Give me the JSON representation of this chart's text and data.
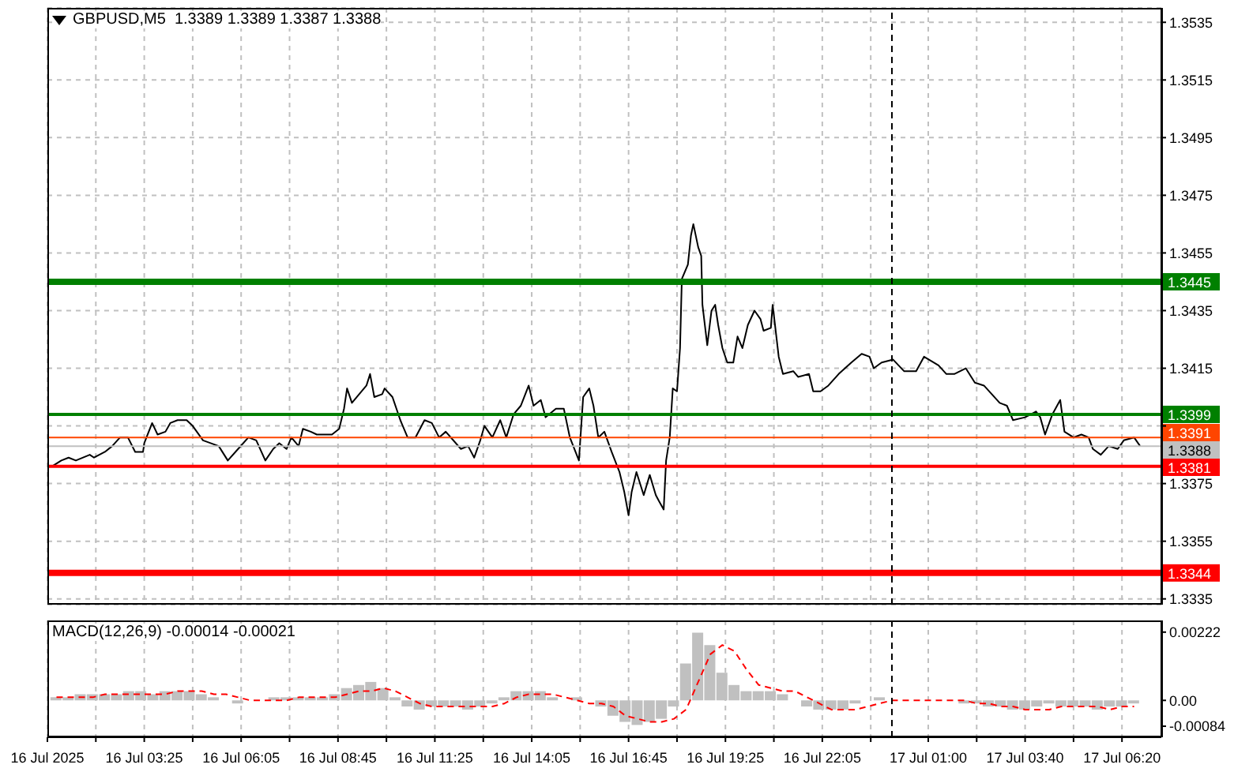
{
  "chart_data": [
    {
      "type": "line",
      "title": "GBPUSD,M5  1.3389 1.3389 1.3387 1.3388",
      "x": [
        "2025-07-16T00:53",
        "2025-07-16T01:08",
        "2025-07-16T01:20",
        "2025-07-16T01:32",
        "2025-07-16T01:55",
        "2025-07-16T02:02",
        "2025-07-16T02:20",
        "2025-07-16T02:32",
        "2025-07-16T02:45",
        "2025-07-16T02:58",
        "2025-07-16T03:10",
        "2025-07-16T03:23",
        "2025-07-16T03:25",
        "2025-07-16T03:38",
        "2025-07-16T03:47",
        "2025-07-16T04:00",
        "2025-07-16T04:08",
        "2025-07-16T04:20",
        "2025-07-16T04:35",
        "2025-07-16T04:45",
        "2025-07-16T05:02",
        "2025-07-16T05:28",
        "2025-07-16T05:43",
        "2025-07-16T06:00",
        "2025-07-16T06:17",
        "2025-07-16T06:30",
        "2025-07-16T06:45",
        "2025-07-16T06:58",
        "2025-07-16T07:08",
        "2025-07-16T07:20",
        "2025-07-16T07:28",
        "2025-07-16T07:40",
        "2025-07-16T07:47",
        "2025-07-16T08:00",
        "2025-07-16T08:10",
        "2025-07-16T08:23",
        "2025-07-16T08:35",
        "2025-07-16T08:47",
        "2025-07-16T08:55",
        "2025-07-16T09:00",
        "2025-07-16T09:08",
        "2025-07-16T09:20",
        "2025-07-16T09:32",
        "2025-07-16T09:38",
        "2025-07-16T09:45",
        "2025-07-16T09:58",
        "2025-07-16T10:02",
        "2025-07-16T10:15",
        "2025-07-16T10:28",
        "2025-07-16T10:40",
        "2025-07-16T10:53",
        "2025-07-16T11:08",
        "2025-07-16T11:20",
        "2025-07-16T11:32",
        "2025-07-16T11:43",
        "2025-07-16T12:08",
        "2025-07-16T12:20",
        "2025-07-16T12:30",
        "2025-07-16T12:40",
        "2025-07-16T12:47",
        "2025-07-16T13:00",
        "2025-07-16T13:13",
        "2025-07-16T13:23",
        "2025-07-16T13:35",
        "2025-07-16T13:47",
        "2025-07-16T14:00",
        "2025-07-16T14:08",
        "2025-07-16T14:20",
        "2025-07-16T14:28",
        "2025-07-16T14:45",
        "2025-07-16T14:58",
        "2025-07-16T15:08",
        "2025-07-16T15:23",
        "2025-07-16T15:30",
        "2025-07-16T15:40",
        "2025-07-16T15:47",
        "2025-07-16T15:55",
        "2025-07-16T16:05",
        "2025-07-16T16:17",
        "2025-07-16T16:30",
        "2025-07-16T16:38",
        "2025-07-16T16:45",
        "2025-07-16T16:50",
        "2025-07-16T16:58",
        "2025-07-16T17:10",
        "2025-07-16T17:20",
        "2025-07-16T17:30",
        "2025-07-16T17:35",
        "2025-07-16T17:43",
        "2025-07-16T17:47",
        "2025-07-16T17:53",
        "2025-07-16T17:58",
        "2025-07-16T18:05",
        "2025-07-16T18:10",
        "2025-07-16T18:13",
        "2025-07-16T18:23",
        "2025-07-16T18:28",
        "2025-07-16T18:32",
        "2025-07-16T18:40",
        "2025-07-16T18:45",
        "2025-07-16T18:47",
        "2025-07-16T18:55",
        "2025-07-16T19:02",
        "2025-07-16T19:08",
        "2025-07-16T19:13",
        "2025-07-16T19:20",
        "2025-07-16T19:28",
        "2025-07-16T19:38",
        "2025-07-16T19:45",
        "2025-07-16T19:53",
        "2025-07-16T20:02",
        "2025-07-16T20:13",
        "2025-07-16T20:23",
        "2025-07-16T20:28",
        "2025-07-16T20:40",
        "2025-07-16T20:43",
        "2025-07-16T20:53",
        "2025-07-16T21:00",
        "2025-07-16T21:17",
        "2025-07-16T21:25",
        "2025-07-16T21:43",
        "2025-07-16T21:50",
        "2025-07-16T22:02",
        "2025-07-16T22:15",
        "2025-07-16T22:32",
        "2025-07-16T22:53",
        "2025-07-16T23:10",
        "2025-07-16T23:23",
        "2025-07-16T23:30",
        "2025-07-16T23:43",
        "2025-07-17T00:02",
        "2025-07-17T00:20",
        "2025-07-17T00:40",
        "2025-07-17T00:53",
        "2025-07-17T01:17",
        "2025-07-17T01:30",
        "2025-07-17T01:43",
        "2025-07-17T02:02",
        "2025-07-17T02:17",
        "2025-07-17T02:32",
        "2025-07-17T02:45",
        "2025-07-17T02:58",
        "2025-07-17T03:10",
        "2025-07-17T03:20",
        "2025-07-17T03:40",
        "2025-07-17T03:58",
        "2025-07-17T04:05",
        "2025-07-17T04:13",
        "2025-07-17T04:25",
        "2025-07-17T04:38",
        "2025-07-17T04:45",
        "2025-07-17T05:00",
        "2025-07-17T05:13",
        "2025-07-17T05:25",
        "2025-07-17T05:32",
        "2025-07-17T05:45",
        "2025-07-17T05:58",
        "2025-07-17T06:13",
        "2025-07-17T06:23",
        "2025-07-17T06:40",
        "2025-07-17T06:50"
      ],
      "series": [
        {
          "color": "#000000",
          "values": [
            1.3381,
            1.3383,
            1.3384,
            1.3383,
            1.3385,
            1.3384,
            1.3386,
            1.3388,
            1.3391,
            1.3391,
            1.3386,
            1.3386,
            1.3389,
            1.3396,
            1.3392,
            1.3393,
            1.3396,
            1.3397,
            1.3397,
            1.3395,
            1.339,
            1.3388,
            1.3383,
            1.3387,
            1.3391,
            1.339,
            1.3383,
            1.3387,
            1.3389,
            1.3387,
            1.3391,
            1.3388,
            1.3394,
            1.3393,
            1.3392,
            1.3392,
            1.3392,
            1.3394,
            1.3401,
            1.3408,
            1.3403,
            1.3406,
            1.3409,
            1.3413,
            1.3405,
            1.3406,
            1.3408,
            1.3405,
            1.3397,
            1.3391,
            1.3391,
            1.3397,
            1.3396,
            1.3391,
            1.3393,
            1.3387,
            1.3388,
            1.3384,
            1.339,
            1.3395,
            1.3391,
            1.3397,
            1.3391,
            1.3399,
            1.3402,
            1.3409,
            1.3402,
            1.3404,
            1.3398,
            1.3401,
            1.3401,
            1.3391,
            1.3383,
            1.3405,
            1.3408,
            1.3402,
            1.3391,
            1.3393,
            1.3386,
            1.3379,
            1.3372,
            1.3364,
            1.3372,
            1.3379,
            1.3371,
            1.3378,
            1.3371,
            1.3369,
            1.3366,
            1.3383,
            1.3391,
            1.3408,
            1.3407,
            1.3422,
            1.3446,
            1.3451,
            1.3461,
            1.3465,
            1.3457,
            1.3454,
            1.3437,
            1.3423,
            1.3435,
            1.3437,
            1.343,
            1.3422,
            1.3417,
            1.3417,
            1.3426,
            1.3422,
            1.343,
            1.3435,
            1.3432,
            1.3428,
            1.3429,
            1.3437,
            1.3419,
            1.3413,
            1.3414,
            1.3412,
            1.3413,
            1.3407,
            1.3407,
            1.3409,
            1.3413,
            1.3417,
            1.342,
            1.3419,
            1.3415,
            1.3417,
            1.3418,
            1.3414,
            1.3414,
            1.3419,
            1.3416,
            1.3413,
            1.3413,
            1.3415,
            1.341,
            1.3409,
            1.3406,
            1.3403,
            1.3402,
            1.3397,
            1.3398,
            1.34,
            1.3398,
            1.3392,
            1.3399,
            1.3404,
            1.3393,
            1.3391,
            1.3392,
            1.3391,
            1.3387,
            1.3385,
            1.3388,
            1.3387,
            1.339,
            1.3391,
            1.3388
          ]
        }
      ],
      "xlim": [
        "2025-07-16T00:45",
        "2025-07-17T07:25"
      ],
      "xticks": [
        {
          "value": "2025-07-16T00:45",
          "label": null
        },
        {
          "value": "2025-07-16T02:05",
          "label": null
        },
        {
          "value": "2025-07-16T03:25",
          "label": null
        },
        {
          "value": "2025-07-16T04:45",
          "label": null
        },
        {
          "value": "2025-07-16T06:05",
          "label": null
        },
        {
          "value": "2025-07-16T07:25",
          "label": null
        },
        {
          "value": "2025-07-16T08:45",
          "label": null
        },
        {
          "value": "2025-07-16T10:05",
          "label": null
        },
        {
          "value": "2025-07-16T11:25",
          "label": null
        },
        {
          "value": "2025-07-16T12:45",
          "label": null
        },
        {
          "value": "2025-07-16T14:05",
          "label": null
        },
        {
          "value": "2025-07-16T15:25",
          "label": null
        },
        {
          "value": "2025-07-16T16:45",
          "label": null
        },
        {
          "value": "2025-07-16T18:05",
          "label": null
        },
        {
          "value": "2025-07-16T19:25",
          "label": null
        },
        {
          "value": "2025-07-16T20:45",
          "label": null
        },
        {
          "value": "2025-07-16T22:05",
          "label": null
        },
        {
          "value": "2025-07-16T23:25",
          "label": null
        },
        {
          "value": "2025-07-17T01:00",
          "label": null
        },
        {
          "value": "2025-07-17T02:20",
          "label": null
        },
        {
          "value": "2025-07-17T03:40",
          "label": null
        },
        {
          "value": "2025-07-17T05:00",
          "label": null
        },
        {
          "value": "2025-07-17T06:20",
          "label": null
        }
      ],
      "ylim": [
        1.3333,
        1.354
      ],
      "yticks": [
        1.3335,
        1.3355,
        1.3375,
        {
          "value": 1.3395,
          "label": null
        },
        1.3415,
        1.3435,
        1.3455,
        1.3475,
        1.3495,
        1.3515,
        1.3535
      ],
      "grid": true,
      "tick_labels": "y",
      "line_style": "solid",
      "ref_lines": [
        {
          "axis": "y",
          "value": 1.3445,
          "label": "1.3445",
          "color": "#008000"
        },
        {
          "axis": "y",
          "value": 1.3399,
          "label": "1.3399",
          "color": "#008000"
        },
        {
          "axis": "y",
          "value": 1.3391,
          "label": "1.3391",
          "color": "#ff4500"
        },
        {
          "axis": "y",
          "value": 1.3388,
          "label": "1.3388",
          "color": "#c0c0c0"
        },
        {
          "axis": "y",
          "value": 1.3381,
          "label": "1.3381",
          "color": "#ff0000"
        },
        {
          "axis": "y",
          "value": 1.3344,
          "label": "1.3344",
          "color": "#ff0000"
        },
        {
          "axis": "x",
          "value": "2025-07-17T00:00",
          "color": "#000000",
          "line_style": "dashed"
        }
      ]
    },
    {
      "type": "bar",
      "title": "MACD(12,26,9) -0.00014 -0.00021",
      "x": [
        "2025-07-16T01:00",
        "2025-07-16T01:20",
        "2025-07-16T01:40",
        "2025-07-16T02:00",
        "2025-07-16T02:20",
        "2025-07-16T02:40",
        "2025-07-16T03:00",
        "2025-07-16T03:20",
        "2025-07-16T03:40",
        "2025-07-16T04:00",
        "2025-07-16T04:20",
        "2025-07-16T04:40",
        "2025-07-16T05:00",
        "2025-07-16T05:20",
        "2025-07-16T05:40",
        "2025-07-16T06:00",
        "2025-07-16T06:20",
        "2025-07-16T06:40",
        "2025-07-16T07:00",
        "2025-07-16T07:20",
        "2025-07-16T07:40",
        "2025-07-16T08:00",
        "2025-07-16T08:20",
        "2025-07-16T08:40",
        "2025-07-16T09:00",
        "2025-07-16T09:20",
        "2025-07-16T09:40",
        "2025-07-16T10:00",
        "2025-07-16T10:20",
        "2025-07-16T10:40",
        "2025-07-16T11:00",
        "2025-07-16T11:20",
        "2025-07-16T11:40",
        "2025-07-16T12:00",
        "2025-07-16T12:20",
        "2025-07-16T12:40",
        "2025-07-16T13:00",
        "2025-07-16T13:20",
        "2025-07-16T13:40",
        "2025-07-16T14:00",
        "2025-07-16T14:20",
        "2025-07-16T14:40",
        "2025-07-16T15:00",
        "2025-07-16T15:20",
        "2025-07-16T15:40",
        "2025-07-16T16:00",
        "2025-07-16T16:20",
        "2025-07-16T16:40",
        "2025-07-16T17:00",
        "2025-07-16T17:20",
        "2025-07-16T17:40",
        "2025-07-16T18:00",
        "2025-07-16T18:20",
        "2025-07-16T18:40",
        "2025-07-16T19:00",
        "2025-07-16T19:20",
        "2025-07-16T19:40",
        "2025-07-16T20:00",
        "2025-07-16T20:20",
        "2025-07-16T20:40",
        "2025-07-16T21:00",
        "2025-07-16T21:20",
        "2025-07-16T21:40",
        "2025-07-16T22:00",
        "2025-07-16T22:20",
        "2025-07-16T22:40",
        "2025-07-16T23:00",
        "2025-07-16T23:20",
        "2025-07-16T23:40",
        "2025-07-17T00:00",
        "2025-07-17T00:20",
        "2025-07-17T00:40",
        "2025-07-17T01:00",
        "2025-07-17T01:20",
        "2025-07-17T01:40",
        "2025-07-17T02:00",
        "2025-07-17T02:20",
        "2025-07-17T02:40",
        "2025-07-17T03:00",
        "2025-07-17T03:20",
        "2025-07-17T03:40",
        "2025-07-17T04:00",
        "2025-07-17T04:20",
        "2025-07-17T04:40",
        "2025-07-17T05:00",
        "2025-07-17T05:20",
        "2025-07-17T05:40",
        "2025-07-17T06:00",
        "2025-07-17T06:20",
        "2025-07-17T06:40"
      ],
      "series": [
        {
          "color": "#c0c0c0",
          "values": [
            0.0001,
            0.0001,
            0.0002,
            0.0002,
            0.0002,
            0.0002,
            0.0003,
            0.0003,
            0.0002,
            0.0003,
            0.0003,
            0.0003,
            0.0002,
            0.0001,
            0,
            -0.0001,
            0,
            0,
            0.0001,
            0.0001,
            0.0001,
            0.0001,
            0.0001,
            0.0002,
            0.0004,
            0.0005,
            0.0006,
            0.0004,
            0.0001,
            -0.0002,
            -0.0003,
            -0.0002,
            -0.0002,
            -0.0002,
            -0.0003,
            -0.0002,
            -0.0001,
            0.0001,
            0.0003,
            0.0003,
            0.0003,
            0.0001,
            0,
            0.0001,
            0,
            -0.0002,
            -0.0005,
            -0.0007,
            -0.0008,
            -0.0007,
            -0.0006,
            -0.0002,
            0.0012,
            0.0022,
            0.0018,
            0.0009,
            0.0005,
            0.0003,
            0.0003,
            0.0003,
            0.0002,
            0,
            -0.0002,
            -0.0003,
            -0.0003,
            -0.0003,
            -0.0001,
            0,
            0.0001,
            0,
            0,
            0,
            0,
            0,
            0,
            -0.0001,
            -0.0001,
            -0.0002,
            -0.0002,
            -0.0003,
            -0.0003,
            -0.0002,
            -0.0001,
            -0.0002,
            -0.0002,
            -0.0002,
            -0.0003,
            -0.0002,
            -0.0002,
            -0.0001
          ]
        },
        {
          "type": "line",
          "color": "#ff0000",
          "line_style": "dashed",
          "values": [
            0.0001,
            0.0001,
            0.0001,
            0.0001,
            0.0002,
            0.0002,
            0.0002,
            0.0002,
            0.0002,
            0.0002,
            0.0003,
            0.0003,
            0.0003,
            0.0002,
            0.0002,
            0.0001,
            0,
            0,
            0,
            0,
            0.0001,
            0.0001,
            0.0001,
            0.0001,
            0.0002,
            0.0003,
            0.0003,
            0.0004,
            0.0003,
            0.0001,
            -0.0001,
            -0.0002,
            -0.0002,
            -0.0002,
            -0.0002,
            -0.0002,
            -0.0002,
            -0.0001,
            0.0001,
            0.0002,
            0.0002,
            0.0002,
            0.0001,
            0,
            -0.0001,
            -0.0001,
            -0.0002,
            -0.0005,
            -0.0006,
            -0.0007,
            -0.0007,
            -0.0006,
            -0.0003,
            0.0006,
            0.0015,
            0.0018,
            0.0016,
            0.001,
            0.0005,
            0.0004,
            0.0003,
            0.0003,
            0.0001,
            -0.0001,
            -0.0003,
            -0.0003,
            -0.0003,
            -0.0002,
            -0.0001,
            0,
            0,
            0,
            0,
            0,
            0,
            0,
            -0.0001,
            -0.0001,
            -0.0002,
            -0.0002,
            -0.0003,
            -0.0003,
            -0.0003,
            -0.0002,
            -0.0002,
            -0.0002,
            -0.0002,
            -0.0003,
            -0.0002,
            -0.0002
          ]
        }
      ],
      "xlim": [
        "2025-07-16T00:45",
        "2025-07-17T07:25"
      ],
      "xticks": [
        {
          "value": "2025-07-16T00:45",
          "label": "16 Jul 2025"
        },
        {
          "value": "2025-07-16T02:05",
          "label": null
        },
        {
          "value": "2025-07-16T03:25",
          "label": "16 Jul 03:25"
        },
        {
          "value": "2025-07-16T04:45",
          "label": null
        },
        {
          "value": "2025-07-16T06:05",
          "label": "16 Jul 06:05"
        },
        {
          "value": "2025-07-16T07:25",
          "label": null
        },
        {
          "value": "2025-07-16T08:45",
          "label": "16 Jul 08:45"
        },
        {
          "value": "2025-07-16T10:05",
          "label": null
        },
        {
          "value": "2025-07-16T11:25",
          "label": "16 Jul 11:25"
        },
        {
          "value": "2025-07-16T12:45",
          "label": null
        },
        {
          "value": "2025-07-16T14:05",
          "label": "16 Jul 14:05"
        },
        {
          "value": "2025-07-16T15:25",
          "label": null
        },
        {
          "value": "2025-07-16T16:45",
          "label": "16 Jul 16:45"
        },
        {
          "value": "2025-07-16T18:05",
          "label": null
        },
        {
          "value": "2025-07-16T19:25",
          "label": "16 Jul 19:25"
        },
        {
          "value": "2025-07-16T20:45",
          "label": null
        },
        {
          "value": "2025-07-16T22:05",
          "label": "16 Jul 22:05"
        },
        {
          "value": "2025-07-16T23:25",
          "label": null
        },
        {
          "value": "2025-07-17T01:00",
          "label": "17 Jul 01:00"
        },
        {
          "value": "2025-07-17T02:20",
          "label": null
        },
        {
          "value": "2025-07-17T03:40",
          "label": "17 Jul 03:40"
        },
        {
          "value": "2025-07-17T05:00",
          "label": null
        },
        {
          "value": "2025-07-17T06:20",
          "label": "17 Jul 06:20"
        }
      ],
      "ylim": [
        -0.0012,
        0.0026
      ],
      "yticks": [
        {
          "value": -0.00084,
          "label": "-0.00084"
        },
        {
          "value": 0,
          "label": "0.00"
        },
        {
          "value": 0.00222,
          "label": "0.00222"
        }
      ],
      "grid": "x",
      "ref_lines": [
        {
          "axis": "x",
          "value": "2025-07-17T00:00",
          "color": "#000000",
          "line_style": "dashed"
        }
      ]
    }
  ]
}
